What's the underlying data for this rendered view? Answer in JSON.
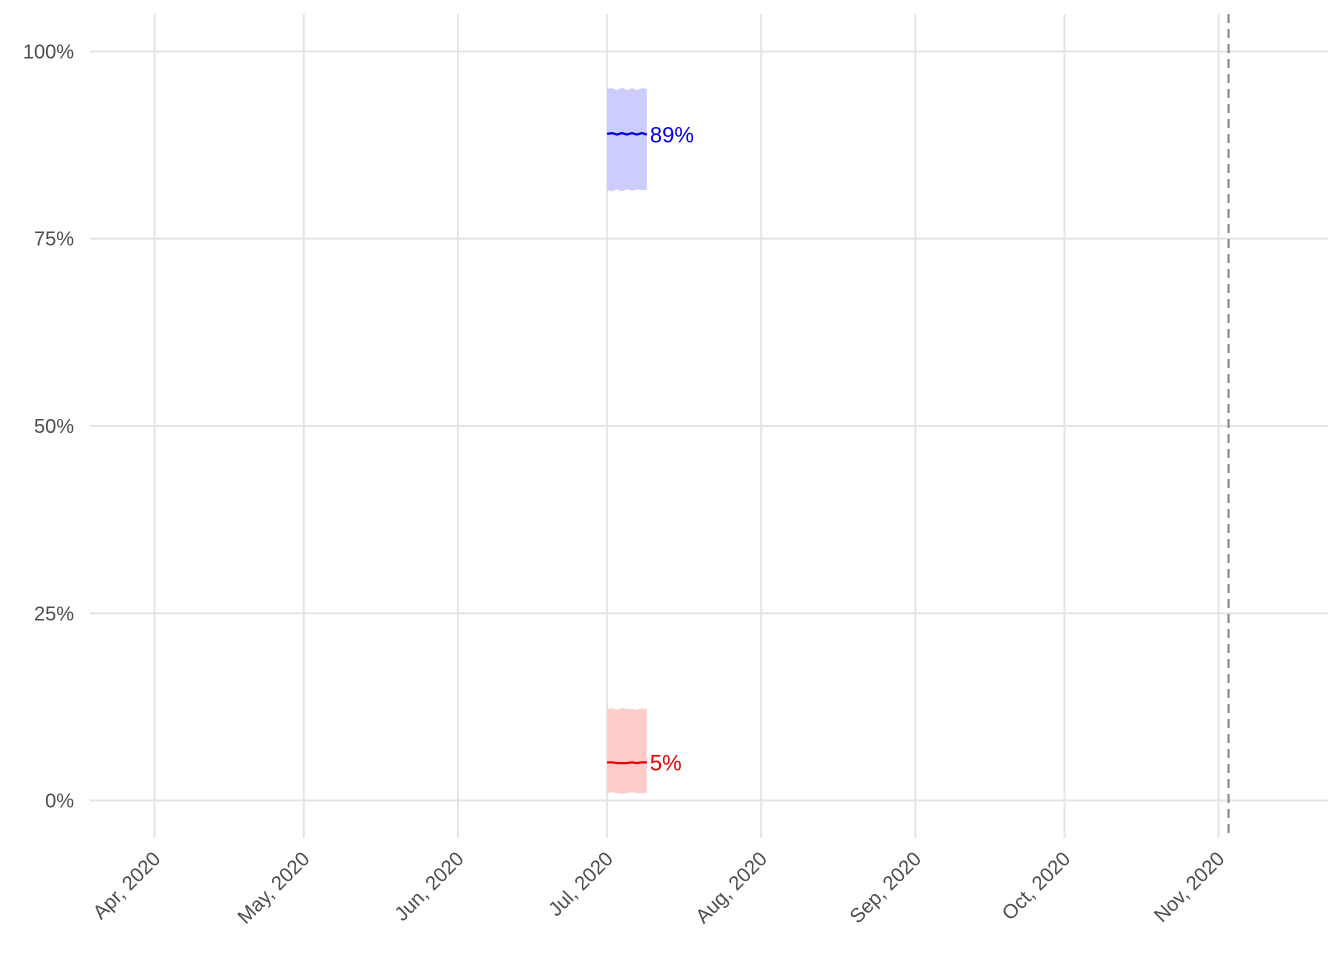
{
  "chart_data": {
    "type": "line",
    "title": "",
    "xlabel": "",
    "ylabel": "",
    "x_axis": {
      "type": "date",
      "range": [
        "2020-03-19",
        "2020-11-23"
      ],
      "ticks": [
        "2020-04-01",
        "2020-05-01",
        "2020-06-01",
        "2020-07-01",
        "2020-08-01",
        "2020-09-01",
        "2020-10-01",
        "2020-11-01"
      ],
      "tick_labels": [
        "Apr, 2020",
        "May, 2020",
        "Jun, 2020",
        "Jul, 2020",
        "Aug, 2020",
        "Sep, 2020",
        "Oct, 2020",
        "Nov, 2020"
      ],
      "tick_label_rotation": -45
    },
    "y_axis": {
      "range": [
        -0.05,
        1.05
      ],
      "ticks": [
        0,
        0.25,
        0.5,
        0.75,
        1.0
      ],
      "tick_labels": [
        "0%",
        "25%",
        "50%",
        "75%",
        "100%"
      ]
    },
    "grid": true,
    "reference_line": {
      "date": "2020-11-03",
      "style": "dashed",
      "color": "#8c8c8c"
    },
    "series": [
      {
        "color": "#0000e6",
        "band_color": "#ccccff",
        "end_label": "89%",
        "x": [
          "2020-07-01",
          "2020-07-02",
          "2020-07-03",
          "2020-07-04",
          "2020-07-05",
          "2020-07-06",
          "2020-07-07",
          "2020-07-08",
          "2020-07-09"
        ],
        "values": [
          0.89,
          0.891,
          0.889,
          0.891,
          0.889,
          0.891,
          0.889,
          0.891,
          0.889
        ],
        "lower": [
          0.815,
          0.813,
          0.816,
          0.813,
          0.816,
          0.814,
          0.816,
          0.815,
          0.815
        ],
        "upper": [
          0.95,
          0.951,
          0.948,
          0.952,
          0.948,
          0.951,
          0.948,
          0.951,
          0.95
        ]
      },
      {
        "color": "#e60000",
        "band_color": "#ffcccc",
        "end_label": "5%",
        "x": [
          "2020-07-01",
          "2020-07-02",
          "2020-07-03",
          "2020-07-04",
          "2020-07-05",
          "2020-07-06",
          "2020-07-07",
          "2020-07-08",
          "2020-07-09"
        ],
        "values": [
          0.051,
          0.051,
          0.05,
          0.05,
          0.05,
          0.051,
          0.05,
          0.051,
          0.051
        ],
        "lower": [
          0.01,
          0.011,
          0.01,
          0.009,
          0.01,
          0.011,
          0.01,
          0.01,
          0.01
        ],
        "upper": [
          0.122,
          0.123,
          0.121,
          0.124,
          0.122,
          0.122,
          0.121,
          0.123,
          0.122
        ]
      }
    ]
  }
}
